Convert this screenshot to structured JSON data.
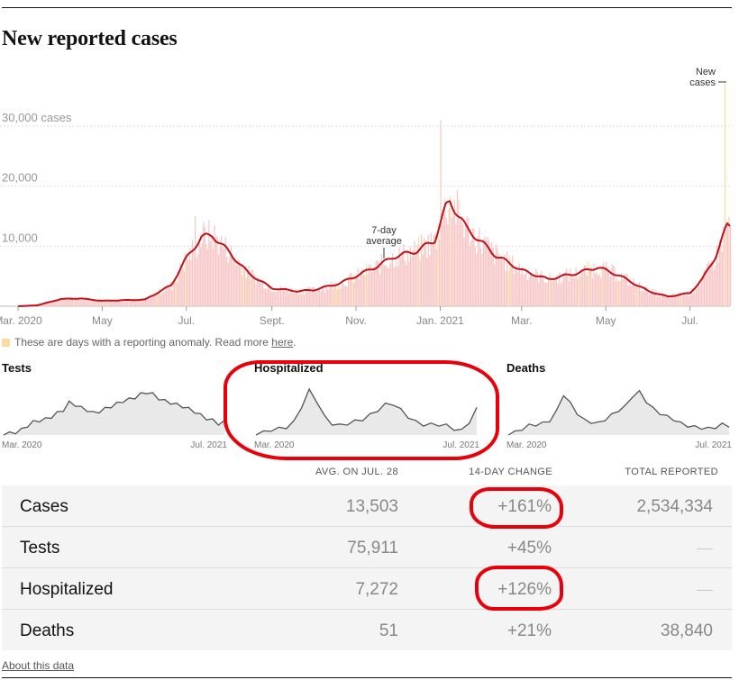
{
  "title": "New reported cases",
  "chart_data": {
    "type": "bar",
    "title": "New reported cases",
    "y_unit_label": "cases",
    "ylim": [
      0,
      37500
    ],
    "yticks": [
      {
        "value": 10000,
        "label": "10,000"
      },
      {
        "value": 20000,
        "label": "20,000"
      },
      {
        "value": 30000,
        "label": "30,000 cases"
      }
    ],
    "grid": true,
    "x_tick_labels": [
      "Mar. 2020",
      "May",
      "Jul.",
      "Sept.",
      "Nov.",
      "Jan. 2021",
      "Mar.",
      "May",
      "Jul."
    ],
    "series": [
      {
        "name": "New cases",
        "style": "bars",
        "color": "#f6c6c6"
      },
      {
        "name": "7-day average",
        "style": "line",
        "color": "#c0101a"
      }
    ],
    "annotations": [
      {
        "text_lines": [
          "New",
          "cases"
        ],
        "points_to": "New cases"
      },
      {
        "text_lines": [
          "7-day",
          "average"
        ],
        "points_to": "7-day average"
      }
    ],
    "seven_day_average": [
      {
        "date": "2020-03-01",
        "value": 0
      },
      {
        "date": "2020-03-15",
        "value": 150
      },
      {
        "date": "2020-04-01",
        "value": 1200
      },
      {
        "date": "2020-04-15",
        "value": 1300
      },
      {
        "date": "2020-05-01",
        "value": 900
      },
      {
        "date": "2020-06-01",
        "value": 1100
      },
      {
        "date": "2020-06-20",
        "value": 3500
      },
      {
        "date": "2020-07-01",
        "value": 8000
      },
      {
        "date": "2020-07-12",
        "value": 11500
      },
      {
        "date": "2020-07-20",
        "value": 11800
      },
      {
        "date": "2020-08-01",
        "value": 9000
      },
      {
        "date": "2020-08-15",
        "value": 5500
      },
      {
        "date": "2020-09-01",
        "value": 3000
      },
      {
        "date": "2020-09-20",
        "value": 2500
      },
      {
        "date": "2020-10-01",
        "value": 2700
      },
      {
        "date": "2020-10-20",
        "value": 3800
      },
      {
        "date": "2020-11-15",
        "value": 6500
      },
      {
        "date": "2020-11-28",
        "value": 8200
      },
      {
        "date": "2020-12-15",
        "value": 9200
      },
      {
        "date": "2020-12-28",
        "value": 11000
      },
      {
        "date": "2021-01-05",
        "value": 16500
      },
      {
        "date": "2021-01-08",
        "value": 17500
      },
      {
        "date": "2021-01-20",
        "value": 13000
      },
      {
        "date": "2021-02-10",
        "value": 8500
      },
      {
        "date": "2021-03-01",
        "value": 6000
      },
      {
        "date": "2021-03-20",
        "value": 4500
      },
      {
        "date": "2021-04-10",
        "value": 5500
      },
      {
        "date": "2021-04-25",
        "value": 6500
      },
      {
        "date": "2021-05-10",
        "value": 5200
      },
      {
        "date": "2021-06-01",
        "value": 2500
      },
      {
        "date": "2021-06-15",
        "value": 1600
      },
      {
        "date": "2021-07-01",
        "value": 2200
      },
      {
        "date": "2021-07-10",
        "value": 4500
      },
      {
        "date": "2021-07-20",
        "value": 8500
      },
      {
        "date": "2021-07-28",
        "value": 13503
      }
    ],
    "daily_reported_peaks": [
      {
        "date": "2020-07-07",
        "value": 15000
      },
      {
        "date": "2021-01-01",
        "value": 31000
      },
      {
        "date": "2021-07-26",
        "value": 37000
      }
    ]
  },
  "anomaly_note": {
    "text": "These are days with a reporting anomaly. Read more ",
    "link": "here",
    "end": "."
  },
  "sparklines": [
    {
      "title": "Tests",
      "x_start": "Mar. 2020",
      "x_end": "Jul. 2021",
      "values": [
        0.02,
        0.03,
        0.05,
        0.1,
        0.18,
        0.25,
        0.28,
        0.3,
        0.35,
        0.42,
        0.48,
        0.62,
        0.58,
        0.52,
        0.48,
        0.42,
        0.45,
        0.5,
        0.55,
        0.6,
        0.65,
        0.68,
        0.72,
        0.78,
        0.82,
        0.78,
        0.7,
        0.65,
        0.62,
        0.58,
        0.55,
        0.5,
        0.45,
        0.38,
        0.32,
        0.28,
        0.22,
        0.25
      ]
    },
    {
      "title": "Hospitalized",
      "x_start": "Mar. 2020",
      "x_end": "Jul. 2021",
      "values": [
        0.02,
        0.05,
        0.1,
        0.12,
        0.15,
        0.25,
        0.55,
        0.85,
        0.65,
        0.35,
        0.22,
        0.18,
        0.22,
        0.26,
        0.3,
        0.38,
        0.48,
        0.58,
        0.6,
        0.48,
        0.35,
        0.25,
        0.2,
        0.2,
        0.2,
        0.18,
        0.12,
        0.08,
        0.25,
        0.5
      ]
    },
    {
      "title": "Deaths",
      "x_start": "Mar. 2020",
      "x_end": "Jul. 2021",
      "values": [
        0.02,
        0.05,
        0.12,
        0.18,
        0.2,
        0.22,
        0.28,
        0.45,
        0.78,
        0.6,
        0.42,
        0.28,
        0.25,
        0.22,
        0.3,
        0.38,
        0.48,
        0.55,
        0.75,
        0.82,
        0.65,
        0.5,
        0.42,
        0.35,
        0.3,
        0.22,
        0.18,
        0.15,
        0.14,
        0.12,
        0.15,
        0.2,
        0.18
      ]
    }
  ],
  "table": {
    "headers": {
      "avg": "AVG. ON JUL. 28",
      "change": "14-DAY CHANGE",
      "total": "TOTAL REPORTED"
    },
    "rows": [
      {
        "label": "Cases",
        "avg": "13,503",
        "change": "+161%",
        "total": "2,534,334"
      },
      {
        "label": "Tests",
        "avg": "75,911",
        "change": "+45%",
        "total": ""
      },
      {
        "label": "Hospitalized",
        "avg": "7,272",
        "change": "+126%",
        "total": ""
      },
      {
        "label": "Deaths",
        "avg": "51",
        "change": "+21%",
        "total": "38,840"
      }
    ]
  },
  "about_link": "About this data",
  "accent_color": "#c0101a",
  "markup_color": "#e8000b"
}
